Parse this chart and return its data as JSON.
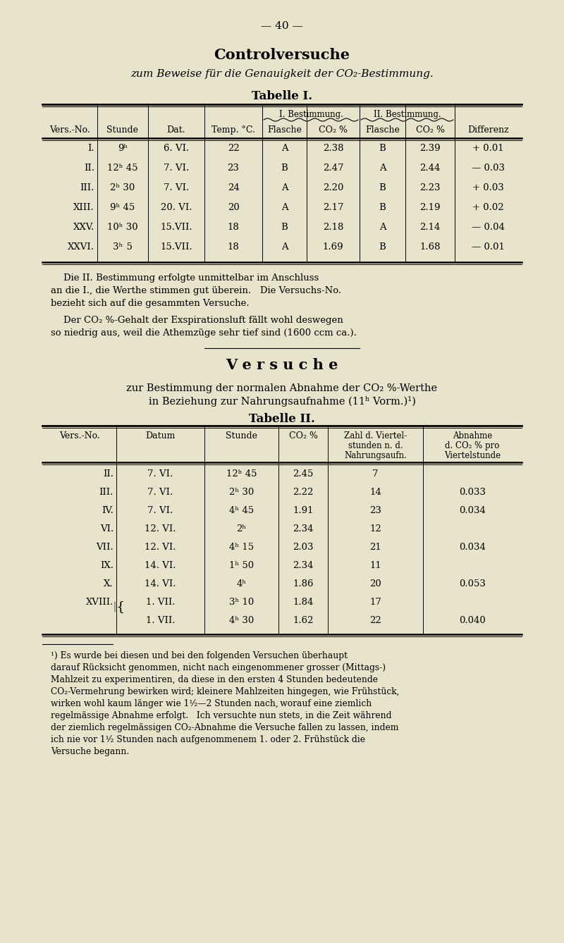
{
  "bg_color": "#e8e4cc",
  "page_number": "40",
  "title1": "Controlversuche",
  "subtitle1": "zum Beweise für die Genauigkeit der CO₂-Bestimmung.",
  "tabelle1_title": "Tabelle I.",
  "tabelle1_headers_top": [
    "",
    "",
    "",
    "",
    "I. Bestimmung.",
    "II. Bestimmung.",
    ""
  ],
  "tabelle1_headers_bot": [
    "Vers.-No.",
    "Stunde",
    "Dat.",
    "Temp. °C.",
    "Flasche",
    "CO₂ %",
    "Flasche",
    "CO₂ %",
    "Differenz"
  ],
  "tabelle1_rows": [
    [
      "I.",
      "9ʰ",
      "6. VI.",
      "22",
      "A",
      "2.38",
      "B",
      "2.39",
      "+ 0.01"
    ],
    [
      "II.",
      "12ʰ 45",
      "7. VI.",
      "23",
      "B",
      "2.47",
      "A",
      "2.44",
      "— 0.03"
    ],
    [
      "III.",
      "2ʰ 30",
      "7. VI.",
      "24",
      "A",
      "2.20",
      "B",
      "2.23",
      "+ 0.03"
    ],
    [
      "XIII.",
      "9ʰ 45",
      "20. VI.",
      "20",
      "A",
      "2.17",
      "B",
      "2.19",
      "+ 0.02"
    ],
    [
      "XXV.",
      "10ʰ 30",
      "15.VII.",
      "18",
      "B",
      "2.18",
      "A",
      "2.14",
      "— 0.04"
    ],
    [
      "XXVI.",
      "3ʰ  5",
      "15.VII.",
      "18",
      "A",
      "1.69",
      "B",
      "1.68",
      "— 0.01"
    ]
  ],
  "para1": "Die II. Bestimmung erfolgte unmittelbar im Anschluss\nan die I., die Werthe stimmen gut überein.   Die Versuchs-No.\nbezieht sich auf die gesammten Versuche.",
  "para2": "Der CO₂ %-Gehalt der Exspirationsluft fällt wohl deswegen\nso niedrig aus, weil die Athemzüge sehr tief sind (1600 ccm ca.).",
  "title2": "V e r s u c h e",
  "subtitle2_line1": "zur Bestimmung der normalen Abnahme der CO₂ %-Werthe",
  "subtitle2_line2": "in Beziehung zur Nahrungsaufnahme (11ʰ Vorm.)¹)",
  "tabelle2_title": "Tabelle II.",
  "tabelle2_col_headers": [
    "Vers.-No.",
    "Datum",
    "Stunde",
    "CO₂ %",
    "Zahl d. Viertel-\nstunden n. d.\nNahrungsaufn.",
    "Abnahme\nd. CO₂ % pro\nViertelstunde"
  ],
  "tabelle2_rows": [
    [
      "II.",
      "7. VI.",
      "12ʰ 45",
      "2.45",
      "7",
      ""
    ],
    [
      "III.",
      "7. VI.",
      "2ʰ 30",
      "2.22",
      "14",
      "0.033"
    ],
    [
      "IV.",
      "7. VI.",
      "4ʰ 45",
      "1.91",
      "23",
      "0.034"
    ],
    [
      "VI.",
      "12. VI.",
      "2ʰ",
      "2.34",
      "12",
      ""
    ],
    [
      "VII.",
      "12. VI.",
      "4ʰ 15",
      "2.03",
      "21",
      "0.034"
    ],
    [
      "IX.",
      "14. VI.",
      "1ʰ 50",
      "2.34",
      "11",
      ""
    ],
    [
      "X.",
      "14. VI.",
      "4ʰ",
      "1.86",
      "20",
      "0.053"
    ],
    [
      "XVIII. {",
      "1. VII.",
      "3ʰ 10",
      "1.84",
      "17",
      ""
    ],
    [
      "",
      "1. VII.",
      "4ʰ 30",
      "1.62",
      "22",
      "0.040"
    ]
  ],
  "footnote": "¹) Es wurde bei diesen und bei den folgenden Versuchen überhaupt\ndarauf Rücksicht genommen, nicht nach eingenommener grosser (Mittags-)\nMahlzeit zu experimentiren, da diese in den ersten 4 Stunden bedeutende\nCO₂-Vermehrung bewirken wird; kleinere Mahlzeiten hingegen, wie Frühstück,\nwirken wohl kaum länger wie 1¹⁄₂—2 Stunden nach, worauf eine ziemlich\nregelmässige Abnahme erfolgt.   Ich versuchte nun stets, in die Zeit während\nder ziemlich regelmässigen CO₂-Abnahme die Versuche fallen zu lassen, indem\nich nie vor 1¹⁄₂ Stunden nach aufgenommenem 1. oder 2. Frühstück die\nVersuche begann."
}
